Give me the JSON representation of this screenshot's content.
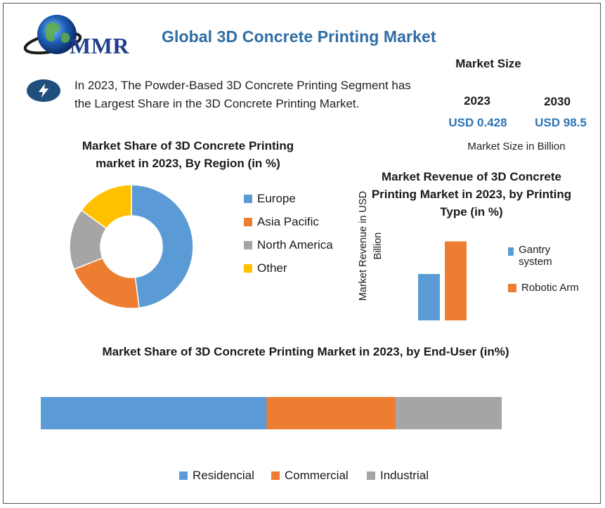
{
  "brand": {
    "logo_text": "MMR"
  },
  "header": {
    "title": "Global 3D Concrete Printing Market"
  },
  "highlight": {
    "icon": "lightning-bolt-icon",
    "text": "In 2023, The Powder-Based 3D Concrete Printing Segment has the Largest Share in the 3D Concrete Printing Market."
  },
  "market_size": {
    "label": "Market Size",
    "year_2023": "2023",
    "value_2023": "USD 0.428",
    "year_2030": "2030",
    "value_2030": "USD 98.5",
    "unit_note": "Market Size in Billion"
  },
  "colors": {
    "blue": "#5b9bd5",
    "orange": "#ed7d31",
    "gray": "#a5a5a5",
    "yellow": "#ffc000",
    "title_blue": "#2e6da4"
  },
  "chart_data": [
    {
      "type": "pie",
      "title": "Market Share of 3D Concrete Printing market in 2023, By Region (in %)",
      "categories": [
        "Europe",
        "Asia Pacific",
        "North America",
        "Other"
      ],
      "values": [
        48,
        21,
        16,
        15
      ],
      "legend_position": "right"
    },
    {
      "type": "bar",
      "title": "Market Revenue of 3D Concrete Printing Market in 2023, by Printing Type (in %)",
      "ylabel": "Market Revenue in USD Billion",
      "xlabel": "",
      "series": [
        {
          "name": "Gantry system",
          "values": [
            37
          ]
        },
        {
          "name": "Robotic Arm",
          "values": [
            63
          ]
        }
      ],
      "ylim": [
        0,
        70
      ],
      "grid": false,
      "legend_position": "right"
    },
    {
      "type": "bar",
      "orientation": "horizontal-stacked",
      "title": "Market Share of 3D Concrete Printing Market in 2023, by End-User (in%)",
      "series": [
        {
          "name": "Residencial",
          "values": [
            49
          ]
        },
        {
          "name": "Commercial",
          "values": [
            28
          ]
        },
        {
          "name": "Industrial",
          "values": [
            23
          ]
        }
      ],
      "legend_position": "bottom"
    }
  ]
}
